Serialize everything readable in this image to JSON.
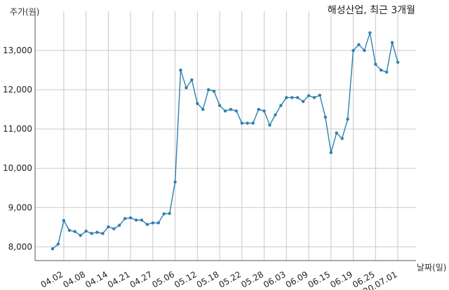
{
  "chart_data": {
    "type": "line",
    "title": "해성산업, 최근 3개월",
    "ylabel": "주가(원)",
    "xlabel": "날짜(일)",
    "ylim": [
      7650,
      13750
    ],
    "yticks": [
      8000,
      9000,
      10000,
      11000,
      12000,
      13000
    ],
    "ytick_labels": [
      "8,000",
      "9,000",
      "10,000",
      "11,000",
      "12,000",
      "13,000"
    ],
    "xtick_labels": [
      "04.02",
      "04.08",
      "04.14",
      "04.21",
      "04.27",
      "05.06",
      "05.12",
      "05.18",
      "05.22",
      "05.28",
      "06.03",
      "06.09",
      "06.15",
      "06.19",
      "06.25",
      "20.07.01"
    ],
    "xtick_index": [
      2,
      6,
      10,
      14,
      18,
      22,
      26,
      30,
      34,
      38,
      42,
      46,
      50,
      54,
      58,
      62
    ],
    "grid": true,
    "series": [
      {
        "values": [
          7950,
          8070,
          8670,
          8420,
          8390,
          8290,
          8400,
          8340,
          8370,
          8340,
          8510,
          8460,
          8550,
          8720,
          8740,
          8680,
          8680,
          8570,
          8610,
          8610,
          8840,
          8850,
          9650,
          12500,
          12050,
          12250,
          11650,
          11500,
          12000,
          11960,
          11600,
          11460,
          11500,
          11460,
          11150,
          11150,
          11150,
          11500,
          11460,
          11100,
          11360,
          11600,
          11800,
          11800,
          11800,
          11700,
          11850,
          11800,
          11860,
          11300,
          10400,
          10900,
          10760,
          11250,
          13000,
          13150,
          13000,
          13450,
          12650,
          12500,
          12450,
          13200,
          12700
        ]
      }
    ]
  }
}
